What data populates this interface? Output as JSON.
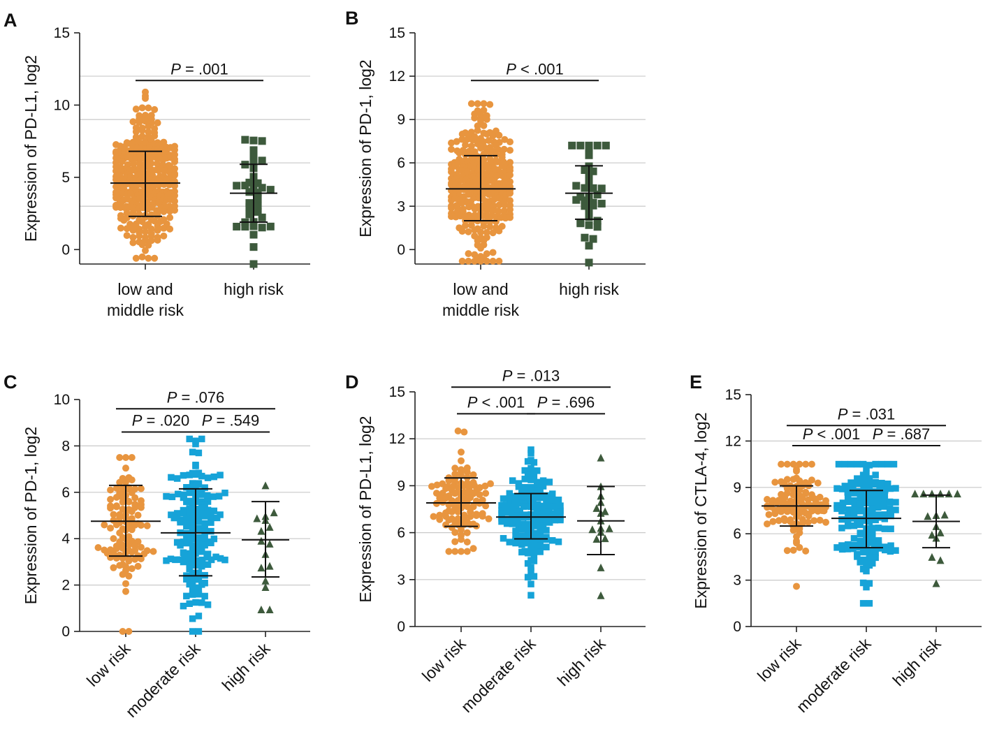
{
  "colors": {
    "low": "#E8953F",
    "moderate": "#16A3D8",
    "high": "#3D5A3C",
    "grid": "#C9C9C9"
  },
  "chart_data": [
    {
      "panel": "A",
      "type": "scatter",
      "ylabel": "Expression of PD-L1, log2",
      "ylim": [
        -1,
        15
      ],
      "yticks": [
        0,
        5,
        10,
        15
      ],
      "gridlines": [
        3,
        6,
        9,
        12
      ],
      "categories": [
        {
          "label_lines": [
            "low and",
            "middle risk"
          ],
          "color_key": "low",
          "marker": "circle",
          "n": 320,
          "mean": 4.6,
          "sd_low": 2.3,
          "sd_high": 6.8,
          "min": -0.6,
          "max": 10.9
        },
        {
          "label_lines": [
            "high risk"
          ],
          "color_key": "high",
          "marker": "square",
          "n": 36,
          "mean": 3.9,
          "sd_low": 1.9,
          "sd_high": 5.9,
          "min": -1.0,
          "max": 7.6
        }
      ],
      "comparisons": [
        {
          "from": 0,
          "to": 1,
          "y": 11.7,
          "p": "P",
          "text": " = .001"
        }
      ]
    },
    {
      "panel": "B",
      "type": "scatter",
      "ylabel": "Expression of PD-1, log2",
      "ylim": [
        -1,
        15
      ],
      "yticks": [
        0,
        3,
        6,
        9,
        12,
        15
      ],
      "gridlines": [
        3,
        6,
        9,
        12
      ],
      "categories": [
        {
          "label_lines": [
            "low and",
            "middle risk"
          ],
          "color_key": "low",
          "marker": "circle",
          "n": 320,
          "mean": 4.2,
          "sd_low": 2.0,
          "sd_high": 6.5,
          "min": -0.8,
          "max": 10.1
        },
        {
          "label_lines": [
            "high risk"
          ],
          "color_key": "high",
          "marker": "square",
          "n": 36,
          "mean": 3.9,
          "sd_low": 2.1,
          "sd_high": 5.8,
          "min": -0.9,
          "max": 7.2
        }
      ],
      "comparisons": [
        {
          "from": 0,
          "to": 1,
          "y": 11.7,
          "p": "P",
          "text": " < .001"
        }
      ]
    },
    {
      "panel": "C",
      "type": "scatter",
      "ylabel": "Expression of PD-1, log2",
      "ylim": [
        0,
        10
      ],
      "yticks": [
        0,
        2,
        4,
        6,
        8,
        10
      ],
      "gridlines": [
        2,
        4,
        6,
        8
      ],
      "categories": [
        {
          "label_lines": [
            "low risk"
          ],
          "color_key": "low",
          "marker": "circle",
          "n": 110,
          "mean": 4.75,
          "sd_low": 3.25,
          "sd_high": 6.3,
          "min": 0.0,
          "max": 7.5
        },
        {
          "label_lines": [
            "moderate risk"
          ],
          "color_key": "moderate",
          "marker": "square",
          "n": 160,
          "mean": 4.25,
          "sd_low": 2.4,
          "sd_high": 6.15,
          "min": 0.0,
          "max": 8.3
        },
        {
          "label_lines": [
            "high risk"
          ],
          "color_key": "high",
          "marker": "triangle",
          "n": 16,
          "mean": 3.95,
          "sd_low": 2.35,
          "sd_high": 5.6,
          "min": 0.95,
          "max": 6.3
        }
      ],
      "comparisons": [
        {
          "from": 0,
          "to": 2,
          "y": 9.6,
          "p": "P",
          "text": " = .076"
        },
        {
          "from": 0,
          "to": 1,
          "y": 8.6,
          "p": "P",
          "text": " = .020"
        },
        {
          "from": 1,
          "to": 2,
          "y": 8.6,
          "p": "P",
          "text": " = .549"
        }
      ]
    },
    {
      "panel": "D",
      "type": "scatter",
      "ylabel": "Expression of PD-L1, log2",
      "ylim": [
        0,
        15
      ],
      "yticks": [
        0,
        3,
        6,
        9,
        12,
        15
      ],
      "gridlines": [
        3,
        6,
        9,
        12
      ],
      "categories": [
        {
          "label_lines": [
            "low risk"
          ],
          "color_key": "low",
          "marker": "circle",
          "n": 110,
          "mean": 7.9,
          "sd_low": 6.4,
          "sd_high": 9.5,
          "min": 4.8,
          "max": 12.5
        },
        {
          "label_lines": [
            "moderate risk"
          ],
          "color_key": "moderate",
          "marker": "square",
          "n": 160,
          "mean": 7.0,
          "sd_low": 5.6,
          "sd_high": 8.5,
          "min": 2.0,
          "max": 11.3
        },
        {
          "label_lines": [
            "high risk"
          ],
          "color_key": "high",
          "marker": "triangle",
          "n": 16,
          "mean": 6.75,
          "sd_low": 4.6,
          "sd_high": 8.95,
          "min": 2.0,
          "max": 10.8
        }
      ],
      "comparisons": [
        {
          "from": 0,
          "to": 2,
          "y": 15.3,
          "p": "P",
          "text": " = .013"
        },
        {
          "from": 0,
          "to": 1,
          "y": 13.6,
          "p": "P",
          "text": " < .001"
        },
        {
          "from": 1,
          "to": 2,
          "y": 13.6,
          "p": "P",
          "text": " = .696"
        }
      ]
    },
    {
      "panel": "E",
      "type": "scatter",
      "ylabel": "Expression of CTLA-4, log2",
      "ylim": [
        0,
        15
      ],
      "yticks": [
        0,
        3,
        6,
        9,
        12,
        15
      ],
      "gridlines": [
        3,
        6,
        9,
        12
      ],
      "categories": [
        {
          "label_lines": [
            "low risk"
          ],
          "color_key": "low",
          "marker": "circle",
          "n": 110,
          "mean": 7.8,
          "sd_low": 6.5,
          "sd_high": 9.1,
          "min": 2.6,
          "max": 10.5
        },
        {
          "label_lines": [
            "moderate risk"
          ],
          "color_key": "moderate",
          "marker": "square",
          "n": 160,
          "mean": 7.0,
          "sd_low": 5.1,
          "sd_high": 8.8,
          "min": 1.5,
          "max": 10.5
        },
        {
          "label_lines": [
            "high risk"
          ],
          "color_key": "high",
          "marker": "triangle",
          "n": 16,
          "mean": 6.8,
          "sd_low": 5.1,
          "sd_high": 8.5,
          "min": 2.8,
          "max": 8.6
        }
      ],
      "comparisons": [
        {
          "from": 0,
          "to": 2,
          "y": 13.0,
          "p": "P",
          "text": " = .031"
        },
        {
          "from": 0,
          "to": 1,
          "y": 11.7,
          "p": "P",
          "text": " < .001"
        },
        {
          "from": 1,
          "to": 2,
          "y": 11.7,
          "p": "P",
          "text": " = .687"
        }
      ]
    }
  ]
}
